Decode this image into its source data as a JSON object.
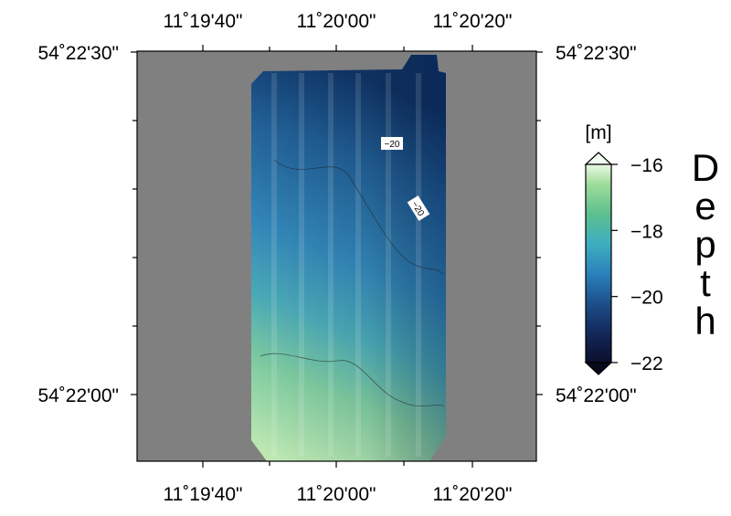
{
  "map": {
    "lon_labels": [
      "11˚19'40\"",
      "11˚20'00\"",
      "11˚20'20\""
    ],
    "lat_labels": [
      "54˚22'30\"",
      "54˚22'00\""
    ],
    "contour_labels": [
      "−20",
      "−20"
    ],
    "colorbar": {
      "unit": "[m]",
      "range": [
        -22,
        -16
      ],
      "ticks": [
        {
          "value": -16,
          "label": "−16"
        },
        {
          "value": -18,
          "label": "−18"
        },
        {
          "value": -20,
          "label": "−20"
        },
        {
          "value": -22,
          "label": "−22"
        }
      ]
    },
    "title_letters": [
      "D",
      "e",
      "p",
      "t",
      "h"
    ]
  }
}
